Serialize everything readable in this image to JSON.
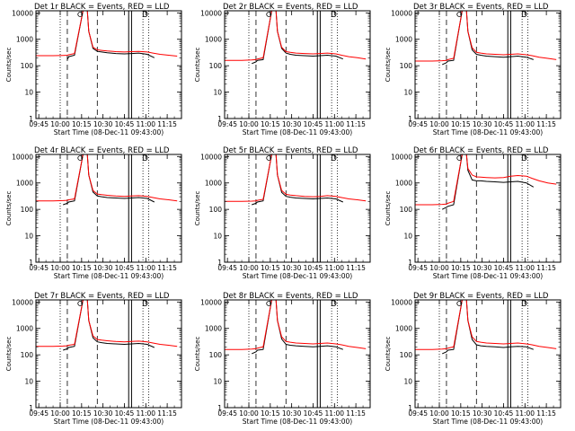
{
  "figure": {
    "ylabel": "Counts/sec",
    "xlabel": "Start Time (08-Dec-11 09:43:00)",
    "x_ticks": [
      "09:45",
      "10:00",
      "10:15",
      "10:30",
      "10:45",
      "11:00",
      "11:15"
    ],
    "y_ticks": [
      "1",
      "10",
      "100",
      "1000",
      "10000"
    ],
    "annotation": "D",
    "colors": {
      "events": "#000000",
      "lld": "#ff0000"
    }
  },
  "chart_data": [
    {
      "type": "line",
      "title": "Det 1r BLACK = Events, RED = LLD",
      "y_scale": "log",
      "ylim": [
        1,
        12000
      ],
      "xlim": [
        "09:43",
        "11:25"
      ],
      "series": [
        {
          "name": "Events",
          "x": [
            "09:43",
            "09:55",
            "10:02",
            "10:03",
            "10:05",
            "10:06",
            "10:10",
            "10:16",
            "10:19",
            "10:20",
            "10:23",
            "10:26",
            "10:29",
            "10:33",
            "10:39",
            "10:45",
            "10:50",
            "10:55",
            "11:01",
            "11:06"
          ],
          "y": [
            null,
            null,
            170,
            null,
            170,
            220,
            250,
            12000,
            12000,
            2000,
            450,
            350,
            330,
            310,
            290,
            280,
            290,
            300,
            270,
            200
          ]
        },
        {
          "name": "LLD",
          "x": [
            "09:43",
            "09:55",
            "10:02",
            "10:05",
            "10:06",
            "10:10",
            "10:16",
            "10:19",
            "10:20",
            "10:23",
            "10:26",
            "10:29",
            "10:33",
            "10:39",
            "10:45",
            "10:50",
            "10:55",
            "11:01",
            "11:05",
            "11:10",
            "11:16",
            "11:22"
          ],
          "y": [
            240,
            240,
            245,
            250,
            260,
            290,
            12000,
            12000,
            2000,
            500,
            400,
            380,
            360,
            340,
            330,
            340,
            350,
            330,
            300,
            270,
            250,
            230
          ]
        }
      ]
    },
    {
      "type": "line",
      "title": "Det 2r BLACK = Events, RED = LLD",
      "y_scale": "log",
      "ylim": [
        1,
        12000
      ],
      "xlim": [
        "09:43",
        "11:25"
      ],
      "series": [
        {
          "name": "Events",
          "x": [
            "10:02",
            "10:05",
            "10:06",
            "10:10",
            "10:16",
            "10:19",
            "10:20",
            "10:23",
            "10:26",
            "10:29",
            "10:33",
            "10:39",
            "10:45",
            "10:50",
            "10:55",
            "11:01",
            "11:06"
          ],
          "y": [
            120,
            140,
            160,
            170,
            12000,
            12000,
            2000,
            450,
            300,
            270,
            250,
            240,
            230,
            240,
            250,
            230,
            180
          ]
        },
        {
          "name": "LLD",
          "x": [
            "09:43",
            "09:55",
            "10:02",
            "10:05",
            "10:06",
            "10:10",
            "10:16",
            "10:19",
            "10:20",
            "10:23",
            "10:26",
            "10:29",
            "10:33",
            "10:39",
            "10:45",
            "10:50",
            "10:55",
            "11:01",
            "11:05",
            "11:10",
            "11:16",
            "11:22"
          ],
          "y": [
            160,
            160,
            165,
            170,
            180,
            200,
            12000,
            12000,
            2000,
            500,
            340,
            320,
            300,
            290,
            280,
            290,
            300,
            280,
            250,
            220,
            200,
            180
          ]
        }
      ]
    },
    {
      "type": "line",
      "title": "Det 3r BLACK = Events, RED = LLD",
      "y_scale": "log",
      "ylim": [
        1,
        12000
      ],
      "xlim": [
        "09:43",
        "11:25"
      ],
      "series": [
        {
          "name": "Events",
          "x": [
            "10:02",
            "10:05",
            "10:06",
            "10:10",
            "10:16",
            "10:19",
            "10:20",
            "10:23",
            "10:26",
            "10:29",
            "10:33",
            "10:39",
            "10:45",
            "10:50",
            "10:55",
            "11:01",
            "11:06"
          ],
          "y": [
            110,
            130,
            150,
            160,
            12000,
            12000,
            2000,
            400,
            270,
            250,
            230,
            220,
            210,
            220,
            230,
            210,
            170
          ]
        },
        {
          "name": "LLD",
          "x": [
            "09:43",
            "09:55",
            "10:02",
            "10:05",
            "10:06",
            "10:10",
            "10:16",
            "10:19",
            "10:20",
            "10:23",
            "10:26",
            "10:29",
            "10:33",
            "10:39",
            "10:45",
            "10:50",
            "10:55",
            "11:01",
            "11:05",
            "11:10",
            "11:16",
            "11:22"
          ],
          "y": [
            150,
            150,
            155,
            160,
            170,
            190,
            12000,
            12000,
            2000,
            480,
            320,
            300,
            280,
            270,
            260,
            270,
            280,
            260,
            240,
            210,
            190,
            170
          ]
        }
      ]
    },
    {
      "type": "line",
      "title": "Det 4r BLACK = Events, RED = LLD",
      "y_scale": "log",
      "ylim": [
        1,
        12000
      ],
      "xlim": [
        "09:43",
        "11:25"
      ],
      "series": [
        {
          "name": "Events",
          "x": [
            "10:02",
            "10:05",
            "10:06",
            "10:10",
            "10:16",
            "10:19",
            "10:20",
            "10:23",
            "10:26",
            "10:29",
            "10:33",
            "10:39",
            "10:45",
            "10:50",
            "10:55",
            "11:01",
            "11:06"
          ],
          "y": [
            150,
            170,
            190,
            210,
            12000,
            12000,
            2000,
            450,
            320,
            300,
            280,
            270,
            260,
            270,
            280,
            260,
            190
          ]
        },
        {
          "name": "LLD",
          "x": [
            "09:43",
            "09:55",
            "10:02",
            "10:05",
            "10:06",
            "10:10",
            "10:16",
            "10:19",
            "10:20",
            "10:23",
            "10:26",
            "10:29",
            "10:33",
            "10:39",
            "10:45",
            "10:50",
            "10:55",
            "11:01",
            "11:05",
            "11:10",
            "11:16",
            "11:22"
          ],
          "y": [
            210,
            210,
            215,
            220,
            230,
            250,
            12000,
            12000,
            2000,
            520,
            380,
            360,
            340,
            320,
            310,
            320,
            330,
            310,
            280,
            250,
            230,
            210
          ]
        }
      ]
    },
    {
      "type": "line",
      "title": "Det 5r BLACK = Events, RED = LLD",
      "y_scale": "log",
      "ylim": [
        1,
        12000
      ],
      "xlim": [
        "09:43",
        "11:25"
      ],
      "series": [
        {
          "name": "Events",
          "x": [
            "10:02",
            "10:05",
            "10:06",
            "10:10",
            "10:16",
            "10:19",
            "10:20",
            "10:23",
            "10:26",
            "10:29",
            "10:33",
            "10:39",
            "10:45",
            "10:50",
            "10:55",
            "11:01",
            "11:06"
          ],
          "y": [
            150,
            170,
            190,
            210,
            12000,
            12000,
            2000,
            440,
            310,
            290,
            270,
            260,
            250,
            260,
            270,
            250,
            190
          ]
        },
        {
          "name": "LLD",
          "x": [
            "09:43",
            "09:55",
            "10:02",
            "10:05",
            "10:06",
            "10:10",
            "10:16",
            "10:19",
            "10:20",
            "10:23",
            "10:26",
            "10:29",
            "10:33",
            "10:39",
            "10:45",
            "10:50",
            "10:55",
            "11:01",
            "11:05",
            "11:10",
            "11:16",
            "11:22"
          ],
          "y": [
            200,
            200,
            205,
            210,
            220,
            240,
            12000,
            12000,
            2000,
            520,
            370,
            350,
            330,
            310,
            300,
            310,
            330,
            310,
            280,
            250,
            230,
            210
          ]
        }
      ]
    },
    {
      "type": "line",
      "title": "Det 6r BLACK = Events, RED = LLD",
      "y_scale": "log",
      "ylim": [
        1,
        12000
      ],
      "xlim": [
        "09:43",
        "11:25"
      ],
      "series": [
        {
          "name": "Events",
          "x": [
            "10:02",
            "10:05",
            "10:06",
            "10:10",
            "10:16",
            "10:19",
            "10:20",
            "10:23",
            "10:26",
            "10:29",
            "10:33",
            "10:39",
            "10:45",
            "10:50",
            "10:55",
            "11:01",
            "11:06"
          ],
          "y": [
            100,
            120,
            130,
            150,
            12000,
            12000,
            3000,
            1300,
            1200,
            1200,
            1150,
            1100,
            1050,
            1100,
            1150,
            1000,
            700
          ]
        },
        {
          "name": "LLD",
          "x": [
            "09:43",
            "09:55",
            "10:02",
            "10:05",
            "10:06",
            "10:10",
            "10:16",
            "10:19",
            "10:20",
            "10:23",
            "10:26",
            "10:29",
            "10:33",
            "10:39",
            "10:45",
            "10:50",
            "10:55",
            "11:01",
            "11:05",
            "11:10",
            "11:16",
            "11:22"
          ],
          "y": [
            150,
            150,
            155,
            160,
            170,
            200,
            12000,
            12000,
            3500,
            2000,
            1700,
            1650,
            1600,
            1550,
            1600,
            1800,
            1900,
            1800,
            1500,
            1200,
            1000,
            900
          ]
        }
      ]
    },
    {
      "type": "line",
      "title": "Det 7r BLACK = Events, RED = LLD",
      "y_scale": "log",
      "ylim": [
        1,
        12000
      ],
      "xlim": [
        "09:43",
        "11:25"
      ],
      "series": [
        {
          "name": "Events",
          "x": [
            "10:02",
            "10:05",
            "10:06",
            "10:10",
            "10:16",
            "10:19",
            "10:20",
            "10:23",
            "10:26",
            "10:29",
            "10:33",
            "10:39",
            "10:45",
            "10:50",
            "10:55",
            "11:01",
            "11:06"
          ],
          "y": [
            150,
            170,
            190,
            210,
            12000,
            12000,
            2000,
            440,
            310,
            290,
            270,
            260,
            250,
            260,
            270,
            250,
            190
          ]
        },
        {
          "name": "LLD",
          "x": [
            "09:43",
            "09:55",
            "10:02",
            "10:05",
            "10:06",
            "10:10",
            "10:16",
            "10:19",
            "10:20",
            "10:23",
            "10:26",
            "10:29",
            "10:33",
            "10:39",
            "10:45",
            "10:50",
            "10:55",
            "11:01",
            "11:05",
            "11:10",
            "11:16",
            "11:22"
          ],
          "y": [
            210,
            210,
            215,
            220,
            230,
            250,
            12000,
            12000,
            2000,
            520,
            380,
            360,
            340,
            320,
            310,
            320,
            330,
            310,
            280,
            250,
            230,
            210
          ]
        }
      ]
    },
    {
      "type": "line",
      "title": "Det 8r BLACK = Events, RED = LLD",
      "y_scale": "log",
      "ylim": [
        1,
        12000
      ],
      "xlim": [
        "09:43",
        "11:25"
      ],
      "series": [
        {
          "name": "Events",
          "x": [
            "10:02",
            "10:05",
            "10:06",
            "10:10",
            "10:16",
            "10:19",
            "10:20",
            "10:23",
            "10:26",
            "10:29",
            "10:33",
            "10:39",
            "10:45",
            "10:50",
            "10:55",
            "11:01",
            "11:06"
          ],
          "y": [
            110,
            130,
            150,
            160,
            12000,
            12000,
            2000,
            400,
            250,
            230,
            220,
            210,
            200,
            210,
            220,
            200,
            160
          ]
        },
        {
          "name": "LLD",
          "x": [
            "09:43",
            "09:55",
            "10:02",
            "10:05",
            "10:06",
            "10:10",
            "10:16",
            "10:19",
            "10:20",
            "10:23",
            "10:26",
            "10:29",
            "10:33",
            "10:39",
            "10:45",
            "10:50",
            "10:55",
            "11:01",
            "11:05",
            "11:10",
            "11:16",
            "11:22"
          ],
          "y": [
            160,
            160,
            165,
            170,
            180,
            200,
            12000,
            12000,
            2000,
            480,
            320,
            300,
            280,
            270,
            260,
            270,
            280,
            260,
            240,
            210,
            190,
            170
          ]
        }
      ]
    },
    {
      "type": "line",
      "title": "Det 9r BLACK = Events, RED = LLD",
      "y_scale": "log",
      "ylim": [
        1,
        12000
      ],
      "xlim": [
        "09:43",
        "11:25"
      ],
      "series": [
        {
          "name": "Events",
          "x": [
            "10:02",
            "10:05",
            "10:06",
            "10:10",
            "10:16",
            "10:19",
            "10:20",
            "10:23",
            "10:26",
            "10:29",
            "10:33",
            "10:39",
            "10:45",
            "10:50",
            "10:55",
            "11:01",
            "11:06"
          ],
          "y": [
            110,
            130,
            150,
            160,
            12000,
            12000,
            2000,
            380,
            240,
            220,
            210,
            200,
            190,
            200,
            210,
            200,
            160
          ]
        },
        {
          "name": "LLD",
          "x": [
            "09:43",
            "09:55",
            "10:02",
            "10:05",
            "10:06",
            "10:10",
            "10:16",
            "10:19",
            "10:20",
            "10:23",
            "10:26",
            "10:29",
            "10:33",
            "10:39",
            "10:45",
            "10:50",
            "10:55",
            "11:01",
            "11:05",
            "11:10",
            "11:16",
            "11:22"
          ],
          "y": [
            160,
            160,
            165,
            170,
            180,
            200,
            12000,
            12000,
            2000,
            480,
            320,
            300,
            280,
            270,
            260,
            270,
            280,
            260,
            240,
            210,
            190,
            170
          ]
        }
      ]
    }
  ]
}
